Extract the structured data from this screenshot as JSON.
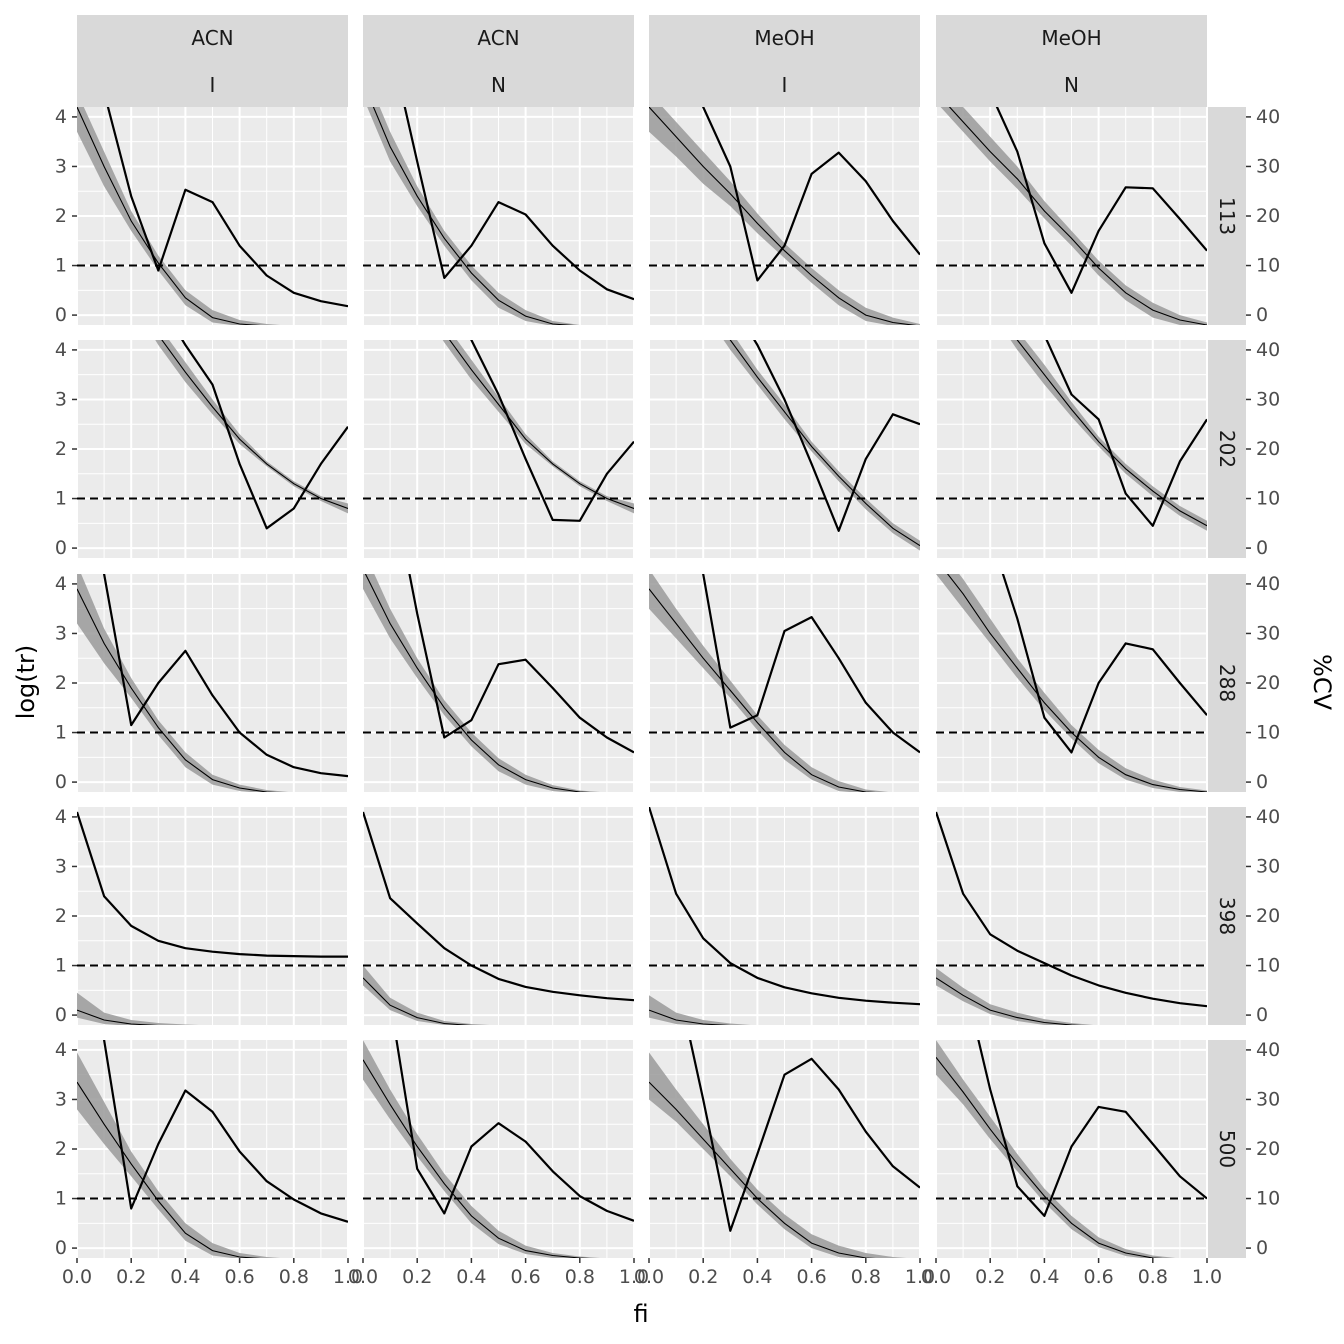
{
  "chart_data": {
    "type": "line",
    "facet_columns": [
      {
        "solvent": "ACN",
        "mode": "I"
      },
      {
        "solvent": "ACN",
        "mode": "N"
      },
      {
        "solvent": "MeOH",
        "mode": "I"
      },
      {
        "solvent": "MeOH",
        "mode": "N"
      }
    ],
    "facet_rows": [
      "113",
      "202",
      "288",
      "398",
      "500"
    ],
    "xlabel": "fi",
    "ylabel_left": "log(tr)",
    "ylabel_right": "%CV",
    "x_ticks": [
      "0.0",
      "0.2",
      "0.4",
      "0.6",
      "0.8",
      "1.0"
    ],
    "y_left_ticks": [
      "0",
      "1",
      "2",
      "3",
      "4"
    ],
    "y_right_ticks": [
      "0",
      "10",
      "20",
      "30",
      "40"
    ],
    "xlim": [
      0,
      1
    ],
    "ylim_left": [
      -0.2,
      4.2
    ],
    "ylim_right": [
      -2,
      42
    ],
    "reference_line_cv": 10,
    "x": [
      0.0,
      0.1,
      0.2,
      0.3,
      0.4,
      0.5,
      0.6,
      0.7,
      0.8,
      0.9,
      1.0
    ],
    "panels": [
      {
        "row": "113",
        "col": 0,
        "mean": [
          4.2,
          3.0,
          1.9,
          1.05,
          0.35,
          -0.05,
          -0.18,
          -0.22,
          -0.24,
          -0.25,
          -0.25
        ],
        "lower": [
          3.7,
          2.6,
          1.7,
          0.9,
          0.2,
          -0.15,
          -0.22,
          -0.25,
          -0.25,
          -0.25,
          -0.25
        ],
        "upper": [
          4.5,
          3.3,
          2.1,
          1.2,
          0.5,
          0.1,
          -0.1,
          -0.18,
          -0.22,
          -0.24,
          -0.25
        ],
        "cv": [
          80,
          45,
          24,
          9,
          25.3,
          22.8,
          14,
          8,
          4.5,
          2.8,
          1.8
        ]
      },
      {
        "row": "113",
        "col": 1,
        "mean": [
          4.7,
          3.4,
          2.4,
          1.55,
          0.85,
          0.3,
          -0.02,
          -0.18,
          -0.22,
          -0.24,
          -0.25
        ],
        "lower": [
          4.4,
          3.1,
          2.2,
          1.4,
          0.7,
          0.15,
          -0.12,
          -0.22,
          -0.25,
          -0.25,
          -0.25
        ],
        "upper": [
          5.0,
          3.7,
          2.6,
          1.7,
          1.0,
          0.45,
          0.1,
          -0.12,
          -0.2,
          -0.23,
          -0.25
        ],
        "cv": [
          80,
          55,
          31,
          7.5,
          14,
          22.8,
          20.3,
          14,
          9,
          5.2,
          3.2
        ]
      },
      {
        "row": "113",
        "col": 2,
        "mean": [
          4.2,
          3.6,
          3.0,
          2.45,
          1.85,
          1.3,
          0.8,
          0.35,
          0.0,
          -0.15,
          -0.22
        ],
        "lower": [
          3.7,
          3.2,
          2.65,
          2.2,
          1.65,
          1.15,
          0.65,
          0.2,
          -0.12,
          -0.22,
          -0.25
        ],
        "upper": [
          4.5,
          3.9,
          3.3,
          2.7,
          2.05,
          1.45,
          0.95,
          0.5,
          0.15,
          -0.05,
          -0.18
        ],
        "cv": [
          80,
          55,
          42,
          30,
          7,
          14,
          28.5,
          32.8,
          27,
          19,
          12.2
        ]
      },
      {
        "row": "113",
        "col": 3,
        "mean": [
          4.5,
          3.9,
          3.3,
          2.75,
          2.1,
          1.55,
          0.95,
          0.45,
          0.1,
          -0.1,
          -0.2
        ],
        "lower": [
          4.3,
          3.7,
          3.1,
          2.55,
          1.95,
          1.4,
          0.8,
          0.3,
          -0.05,
          -0.2,
          -0.25
        ],
        "upper": [
          4.8,
          4.2,
          3.6,
          3.0,
          2.3,
          1.7,
          1.1,
          0.6,
          0.25,
          0.0,
          -0.15
        ],
        "cv": [
          80,
          60,
          45,
          33,
          14.5,
          4.5,
          17,
          25.8,
          25.6,
          19.4,
          13
        ]
      },
      {
        "row": "202",
        "col": 0,
        "mean": [
          7.3,
          6.2,
          5.2,
          4.3,
          3.55,
          2.85,
          2.2,
          1.7,
          1.3,
          1.0,
          0.8
        ],
        "lower": [
          7.1,
          6.0,
          5.0,
          4.1,
          3.35,
          2.7,
          2.1,
          1.65,
          1.25,
          0.95,
          0.7
        ],
        "upper": [
          7.5,
          6.4,
          5.4,
          4.5,
          3.75,
          3.0,
          2.3,
          1.75,
          1.35,
          1.05,
          0.9
        ],
        "cv": [
          90,
          75,
          62,
          50,
          41,
          33,
          17,
          4,
          8,
          17,
          24.5
        ]
      },
      {
        "row": "202",
        "col": 1,
        "mean": [
          7.3,
          6.2,
          5.2,
          4.35,
          3.6,
          2.9,
          2.2,
          1.7,
          1.3,
          1.0,
          0.8
        ],
        "lower": [
          7.1,
          6.0,
          5.0,
          4.15,
          3.4,
          2.75,
          2.1,
          1.65,
          1.25,
          0.95,
          0.7
        ],
        "upper": [
          7.5,
          6.4,
          5.4,
          4.55,
          3.8,
          3.05,
          2.3,
          1.75,
          1.35,
          1.05,
          0.9
        ],
        "cv": [
          90,
          75,
          62,
          52,
          42,
          31,
          18,
          5.7,
          5.5,
          15,
          21.5
        ]
      },
      {
        "row": "202",
        "col": 2,
        "mean": [
          6.8,
          5.9,
          5.0,
          4.2,
          3.45,
          2.75,
          2.05,
          1.45,
          0.9,
          0.4,
          0.05
        ],
        "lower": [
          6.6,
          5.7,
          4.8,
          4.0,
          3.3,
          2.6,
          1.95,
          1.35,
          0.78,
          0.3,
          -0.05
        ],
        "upper": [
          7.0,
          6.1,
          5.2,
          4.4,
          3.6,
          2.9,
          2.15,
          1.55,
          1.0,
          0.5,
          0.15
        ],
        "cv": [
          90,
          75,
          62,
          50,
          41,
          30,
          17,
          3.5,
          18,
          27,
          25
        ]
      },
      {
        "row": "202",
        "col": 3,
        "mean": [
          6.9,
          5.9,
          5.0,
          4.2,
          3.5,
          2.8,
          2.15,
          1.6,
          1.15,
          0.75,
          0.45
        ],
        "lower": [
          6.7,
          5.7,
          4.8,
          4.0,
          3.3,
          2.65,
          2.05,
          1.5,
          1.05,
          0.65,
          0.35
        ],
        "upper": [
          7.1,
          6.1,
          5.2,
          4.4,
          3.7,
          2.95,
          2.25,
          1.7,
          1.25,
          0.85,
          0.55
        ],
        "cv": [
          90,
          75,
          62,
          52,
          43,
          31,
          26,
          11,
          4.5,
          17.5,
          26
        ]
      },
      {
        "row": "288",
        "col": 0,
        "mean": [
          3.9,
          2.8,
          1.9,
          1.1,
          0.45,
          0.05,
          -0.12,
          -0.2,
          -0.23,
          -0.24,
          -0.25
        ],
        "lower": [
          3.2,
          2.4,
          1.7,
          0.95,
          0.3,
          -0.05,
          -0.18,
          -0.23,
          -0.25,
          -0.25,
          -0.25
        ],
        "upper": [
          4.4,
          3.1,
          2.1,
          1.25,
          0.6,
          0.15,
          -0.05,
          -0.16,
          -0.21,
          -0.23,
          -0.24
        ],
        "cv": [
          80,
          42,
          11.5,
          20,
          26.5,
          17.5,
          10,
          5.5,
          3,
          1.8,
          1.2
        ]
      },
      {
        "row": "288",
        "col": 1,
        "mean": [
          4.3,
          3.2,
          2.3,
          1.5,
          0.85,
          0.35,
          0.05,
          -0.12,
          -0.2,
          -0.23,
          -0.25
        ],
        "lower": [
          3.9,
          2.9,
          2.1,
          1.35,
          0.72,
          0.22,
          -0.05,
          -0.18,
          -0.23,
          -0.25,
          -0.25
        ],
        "upper": [
          4.7,
          3.5,
          2.5,
          1.65,
          1.0,
          0.48,
          0.15,
          -0.06,
          -0.17,
          -0.21,
          -0.24
        ],
        "cv": [
          80,
          62,
          34,
          9,
          12.5,
          23.8,
          24.7,
          19,
          13,
          9,
          6
        ]
      },
      {
        "row": "288",
        "col": 2,
        "mean": [
          3.9,
          3.2,
          2.5,
          1.85,
          1.2,
          0.6,
          0.15,
          -0.1,
          -0.2,
          -0.23,
          -0.25
        ],
        "lower": [
          3.5,
          2.9,
          2.3,
          1.7,
          1.05,
          0.45,
          0.05,
          -0.18,
          -0.23,
          -0.25,
          -0.25
        ],
        "upper": [
          4.3,
          3.5,
          2.75,
          2.05,
          1.35,
          0.75,
          0.3,
          0.02,
          -0.15,
          -0.21,
          -0.24
        ],
        "cv": [
          80,
          60,
          42,
          11,
          13.5,
          30.5,
          33.3,
          25,
          16,
          10,
          6
        ]
      },
      {
        "row": "288",
        "col": 3,
        "mean": [
          4.5,
          3.8,
          3.0,
          2.3,
          1.6,
          1.0,
          0.5,
          0.15,
          -0.05,
          -0.15,
          -0.2
        ],
        "lower": [
          4.2,
          3.5,
          2.8,
          2.1,
          1.45,
          0.88,
          0.38,
          0.05,
          -0.12,
          -0.2,
          -0.24
        ],
        "upper": [
          4.8,
          4.1,
          3.3,
          2.5,
          1.8,
          1.15,
          0.65,
          0.28,
          0.05,
          -0.1,
          -0.17
        ],
        "cv": [
          80,
          60,
          50,
          33,
          13,
          6,
          20,
          28,
          26.8,
          20,
          13.5
        ]
      },
      {
        "row": "398",
        "col": 0,
        "mean": [
          0.1,
          -0.1,
          -0.18,
          -0.21,
          -0.22,
          -0.23,
          -0.24,
          -0.24,
          -0.25,
          -0.25,
          -0.25
        ],
        "lower": [
          -0.05,
          -0.18,
          -0.22,
          -0.24,
          -0.25,
          -0.25,
          -0.25,
          -0.25,
          -0.25,
          -0.25,
          -0.25
        ],
        "upper": [
          0.45,
          0.05,
          -0.1,
          -0.16,
          -0.19,
          -0.21,
          -0.22,
          -0.23,
          -0.24,
          -0.24,
          -0.25
        ],
        "cv": [
          41,
          24,
          18,
          15,
          13.5,
          12.8,
          12.3,
          12,
          11.9,
          11.8,
          11.8
        ]
      },
      {
        "row": "398",
        "col": 1,
        "mean": [
          0.75,
          0.2,
          -0.05,
          -0.17,
          -0.21,
          -0.23,
          -0.24,
          -0.25,
          -0.25,
          -0.25,
          -0.25
        ],
        "lower": [
          0.6,
          0.1,
          -0.12,
          -0.2,
          -0.23,
          -0.25,
          -0.25,
          -0.25,
          -0.25,
          -0.25,
          -0.25
        ],
        "upper": [
          1.0,
          0.35,
          0.05,
          -0.12,
          -0.18,
          -0.21,
          -0.23,
          -0.24,
          -0.25,
          -0.25,
          -0.25
        ],
        "cv": [
          41,
          23.6,
          18.5,
          13.5,
          10,
          7.3,
          5.7,
          4.7,
          4,
          3.4,
          3
        ]
      },
      {
        "row": "398",
        "col": 2,
        "mean": [
          0.1,
          -0.1,
          -0.18,
          -0.21,
          -0.23,
          -0.24,
          -0.25,
          -0.25,
          -0.25,
          -0.25,
          -0.25
        ],
        "lower": [
          -0.05,
          -0.18,
          -0.22,
          -0.24,
          -0.25,
          -0.25,
          -0.25,
          -0.25,
          -0.25,
          -0.25,
          -0.25
        ],
        "upper": [
          0.4,
          0.05,
          -0.1,
          -0.17,
          -0.21,
          -0.23,
          -0.24,
          -0.25,
          -0.25,
          -0.25,
          -0.25
        ],
        "cv": [
          42,
          24.5,
          15.5,
          10.5,
          7.5,
          5.6,
          4.4,
          3.5,
          2.9,
          2.5,
          2.2
        ]
      },
      {
        "row": "398",
        "col": 3,
        "mean": [
          0.75,
          0.4,
          0.1,
          -0.05,
          -0.15,
          -0.2,
          -0.23,
          -0.24,
          -0.25,
          -0.25,
          -0.25
        ],
        "lower": [
          0.6,
          0.28,
          0.02,
          -0.12,
          -0.2,
          -0.23,
          -0.25,
          -0.25,
          -0.25,
          -0.25,
          -0.25
        ],
        "upper": [
          0.95,
          0.55,
          0.22,
          0.05,
          -0.08,
          -0.16,
          -0.21,
          -0.23,
          -0.24,
          -0.25,
          -0.25
        ],
        "cv": [
          41,
          24.5,
          16.3,
          13,
          10.5,
          8,
          6,
          4.5,
          3.3,
          2.4,
          1.8
        ]
      },
      {
        "row": "500",
        "col": 0,
        "mean": [
          3.35,
          2.5,
          1.7,
          0.95,
          0.3,
          -0.05,
          -0.18,
          -0.22,
          -0.24,
          -0.25,
          -0.25
        ],
        "lower": [
          2.8,
          2.1,
          1.45,
          0.78,
          0.15,
          -0.15,
          -0.22,
          -0.25,
          -0.25,
          -0.25,
          -0.25
        ],
        "upper": [
          3.95,
          2.95,
          1.95,
          1.15,
          0.5,
          0.1,
          -0.1,
          -0.18,
          -0.22,
          -0.24,
          -0.25
        ],
        "cv": [
          80,
          42,
          8,
          21,
          31.8,
          27.5,
          19.5,
          13.5,
          9.8,
          7,
          5.3
        ]
      },
      {
        "row": "500",
        "col": 1,
        "mean": [
          3.8,
          2.9,
          2.05,
          1.3,
          0.65,
          0.2,
          -0.05,
          -0.15,
          -0.2,
          -0.23,
          -0.25
        ],
        "lower": [
          3.4,
          2.6,
          1.85,
          1.15,
          0.5,
          0.08,
          -0.12,
          -0.2,
          -0.23,
          -0.25,
          -0.25
        ],
        "upper": [
          4.2,
          3.2,
          2.3,
          1.5,
          0.85,
          0.35,
          0.05,
          -0.1,
          -0.17,
          -0.21,
          -0.24
        ],
        "cv": [
          80,
          50,
          16,
          7,
          20.5,
          25.2,
          21.5,
          15.5,
          10.5,
          7.5,
          5.5
        ]
      },
      {
        "row": "500",
        "col": 2,
        "mean": [
          3.35,
          2.8,
          2.2,
          1.6,
          1.0,
          0.5,
          0.1,
          -0.1,
          -0.2,
          -0.23,
          -0.25
        ],
        "lower": [
          3.0,
          2.55,
          2.0,
          1.45,
          0.88,
          0.38,
          0.0,
          -0.18,
          -0.23,
          -0.25,
          -0.25
        ],
        "upper": [
          3.95,
          3.2,
          2.5,
          1.8,
          1.18,
          0.68,
          0.28,
          0.05,
          -0.1,
          -0.18,
          -0.22
        ],
        "cv": [
          80,
          55,
          30,
          3.5,
          19,
          35,
          38.2,
          32,
          23.5,
          16.5,
          12.2
        ]
      },
      {
        "row": "500",
        "col": 3,
        "mean": [
          3.85,
          3.15,
          2.4,
          1.7,
          1.05,
          0.5,
          0.1,
          -0.1,
          -0.2,
          -0.23,
          -0.25
        ],
        "lower": [
          3.5,
          2.9,
          2.2,
          1.55,
          0.92,
          0.38,
          0.02,
          -0.16,
          -0.23,
          -0.25,
          -0.25
        ],
        "upper": [
          4.2,
          3.4,
          2.65,
          1.9,
          1.2,
          0.65,
          0.22,
          -0.02,
          -0.15,
          -0.21,
          -0.24
        ],
        "cv": [
          80,
          55,
          32,
          12.5,
          6.5,
          20.5,
          28.5,
          27.5,
          21,
          14.5,
          10
        ]
      }
    ]
  }
}
